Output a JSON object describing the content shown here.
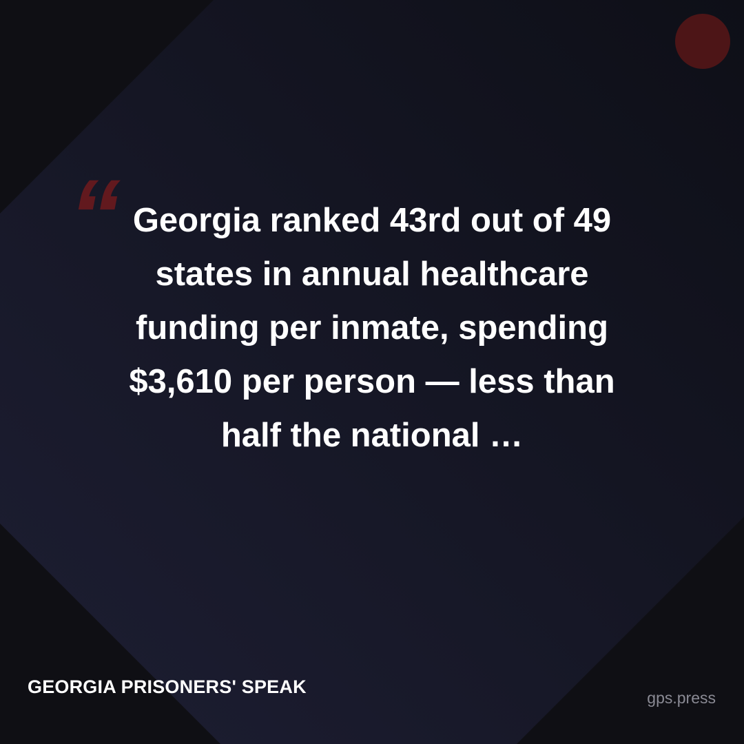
{
  "quote_mark": "“",
  "quote": {
    "lines": [
      "Georgia ranked 43rd out of 49",
      "states in annual healthcare",
      "funding per inmate, spending",
      "$3,610 per person — less than",
      "half the national …"
    ]
  },
  "footer": {
    "brand": "GEORGIA PRISONERS' SPEAK",
    "url": "gps.press"
  }
}
